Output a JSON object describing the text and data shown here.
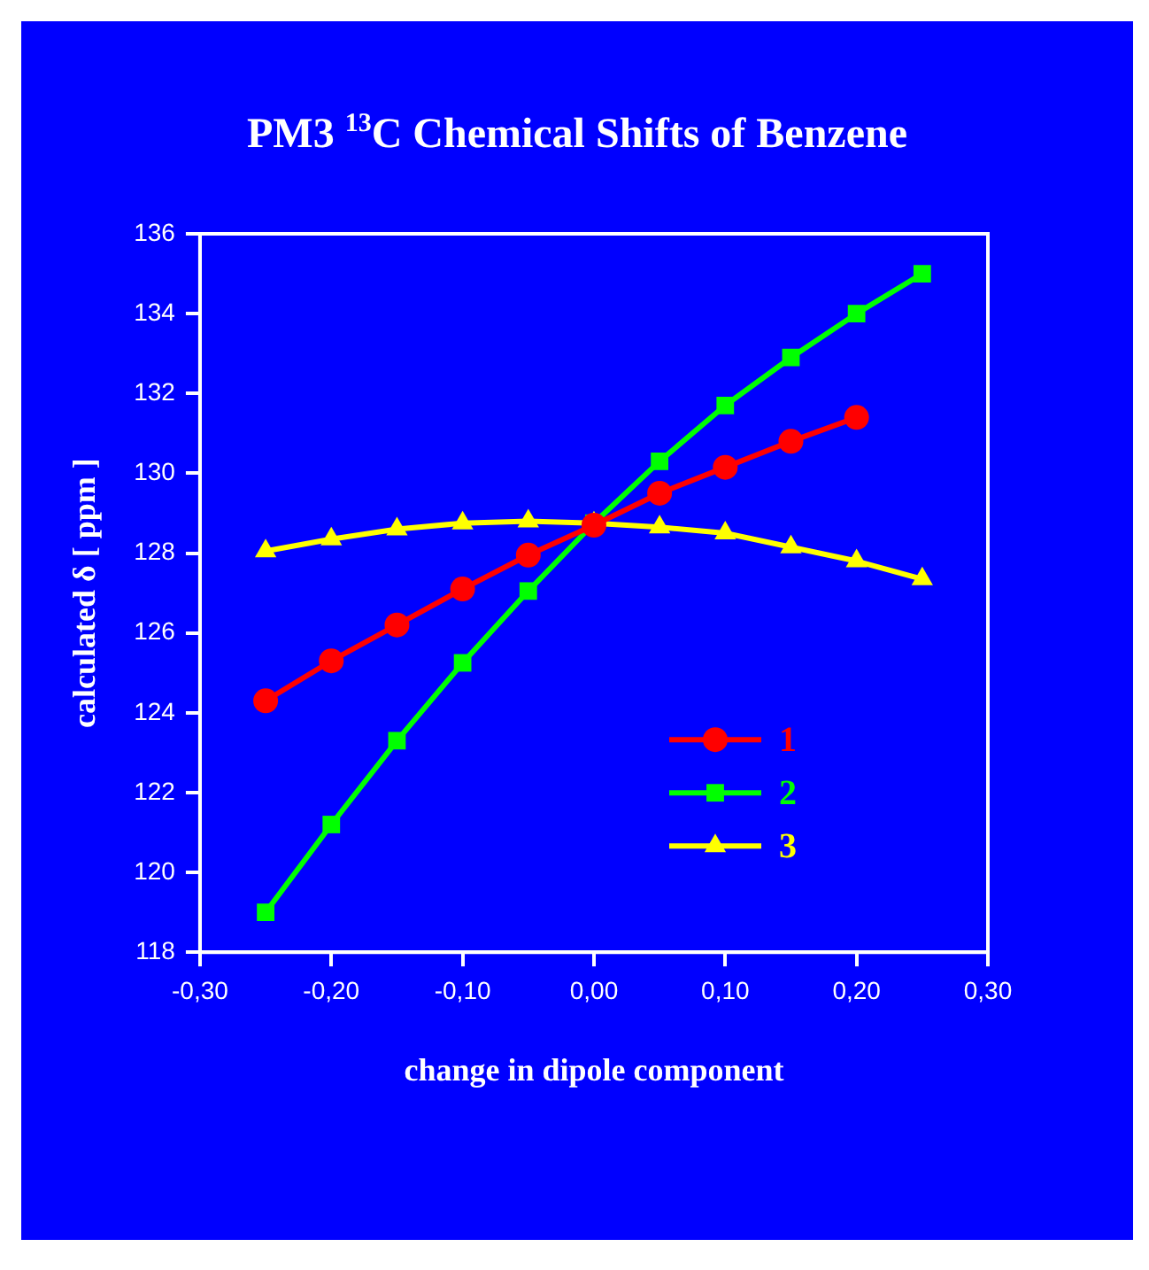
{
  "chart_data": {
    "type": "line",
    "title": "PM3 $^{13}$C Chemical Shifts of Benzene",
    "xlabel": "change in dipole component",
    "ylabel": "calculated δ [ ppm ]",
    "xlim": [
      -0.3,
      0.3
    ],
    "xticks": [
      {
        "value": -0.3,
        "label": "-0,30"
      },
      {
        "value": -0.2,
        "label": "-0,20"
      },
      {
        "value": -0.1,
        "label": "-0,10"
      },
      {
        "value": 0,
        "label": "0,00"
      },
      {
        "value": 0.1,
        "label": "0,10"
      },
      {
        "value": 0.2,
        "label": "0,20"
      },
      {
        "value": 0.3,
        "label": "0,30"
      }
    ],
    "ylim": [
      118,
      136
    ],
    "yticks": [
      118,
      120,
      122,
      124,
      126,
      128,
      130,
      132,
      134,
      136
    ],
    "grid": false,
    "legend": "bottom right",
    "line_style": "solid",
    "series": [
      {
        "name": "1",
        "color": "#ff0000",
        "marker": "circle",
        "x": [
          -0.25,
          -0.2,
          -0.15,
          -0.1,
          -0.05,
          0,
          0.05,
          0.1,
          0.15,
          0.2
        ],
        "values": [
          124.3,
          125.3,
          126.2,
          127.1,
          127.95,
          128.7,
          129.5,
          130.15,
          130.8,
          131.4
        ]
      },
      {
        "name": "2",
        "color": "#00ff00",
        "marker": "square",
        "x": [
          -0.25,
          -0.2,
          -0.15,
          -0.1,
          -0.05,
          0,
          0.05,
          0.1,
          0.15,
          0.2,
          0.25
        ],
        "values": [
          119.0,
          121.2,
          123.3,
          125.25,
          127.05,
          128.75,
          130.3,
          131.7,
          132.9,
          134.0,
          135.0
        ]
      },
      {
        "name": "3",
        "color": "#ffff00",
        "marker": "triangle",
        "x": [
          -0.25,
          -0.2,
          -0.15,
          -0.1,
          -0.05,
          0,
          0.05,
          0.1,
          0.15,
          0.2,
          0.25
        ],
        "values": [
          128.05,
          128.35,
          128.6,
          128.75,
          128.8,
          128.75,
          128.65,
          128.5,
          128.15,
          127.8,
          127.35
        ]
      }
    ]
  }
}
